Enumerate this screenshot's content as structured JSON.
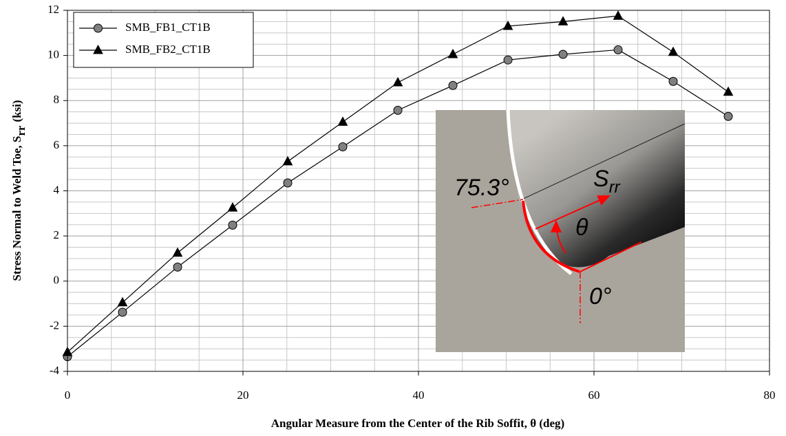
{
  "chart_data": {
    "type": "line",
    "xlabel": "Angular Measure from the Center of the Rib Soffit, θ (deg)",
    "ylabel": {
      "text": "Stress Normal to Weld Toe, S",
      "sub": "rr",
      "unit": "(ksi)"
    },
    "x": [
      0,
      6.275,
      12.55,
      18.825,
      25.1,
      31.375,
      37.65,
      43.925,
      50.2,
      56.475,
      62.75,
      69.025,
      75.3
    ],
    "series": [
      {
        "name": "SMB_FB1_CT1B",
        "color": "#808080",
        "marker": "circle",
        "values": [
          -3.35,
          -1.38,
          0.62,
          2.48,
          4.35,
          5.95,
          7.57,
          8.67,
          9.8,
          10.05,
          10.25,
          8.85,
          7.3
        ]
      },
      {
        "name": "SMB_FB2_CT1B",
        "color": "#000000",
        "marker": "triangle",
        "values": [
          -3.15,
          -0.95,
          1.25,
          3.25,
          5.3,
          7.05,
          8.8,
          10.05,
          11.3,
          11.5,
          11.75,
          10.15,
          8.38
        ]
      }
    ],
    "xlim": [
      0,
      80
    ],
    "ylim": [
      -4,
      12
    ],
    "xticks": [
      0,
      20,
      40,
      60,
      80
    ],
    "yticks": [
      -4,
      -2,
      0,
      2,
      4,
      6,
      8,
      10,
      12
    ],
    "minor_xticks": [
      5,
      10,
      15,
      25,
      30,
      35,
      45,
      50,
      55,
      65,
      70,
      75
    ],
    "minor_yticks": [
      -3.5,
      -3,
      -2.5,
      -1.5,
      -1,
      -0.5,
      0.5,
      1,
      1.5,
      2.5,
      3,
      3.5,
      4.5,
      5,
      5.5,
      6.5,
      7,
      7.5,
      8.5,
      9,
      9.5,
      10.5,
      11,
      11.5
    ],
    "grid": true,
    "legend": "upper left"
  },
  "inset": {
    "angle_label": "75.3°",
    "stress_symbol": "S",
    "stress_sub": "rr",
    "theta": "θ",
    "zero_label": "0°"
  }
}
